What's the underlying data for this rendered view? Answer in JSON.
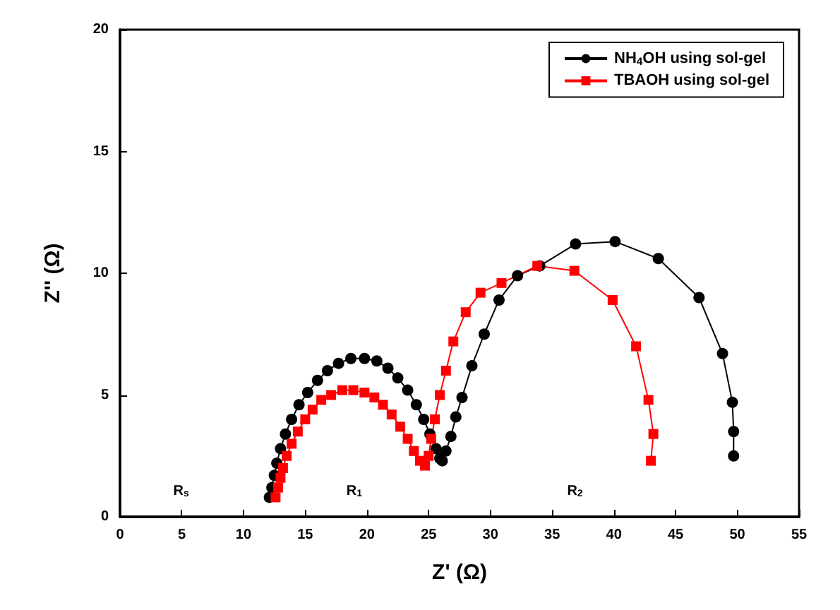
{
  "chart_data": {
    "type": "line",
    "xlabel": "Z' (Ω)",
    "ylabel": "Z'' (Ω)",
    "xlim": [
      0,
      55
    ],
    "xticks": [
      0,
      5,
      10,
      15,
      20,
      25,
      30,
      35,
      40,
      45,
      50,
      55
    ],
    "ylim": [
      0,
      20
    ],
    "yticks": [
      0,
      5,
      10,
      15,
      20
    ],
    "grid": false,
    "legend": "top right",
    "series": [
      {
        "name": "NH$_{4}$OH using sol-gel",
        "color": "#000000",
        "marker": "circle",
        "x": [
          12.1,
          12.3,
          12.5,
          12.7,
          13.0,
          13.4,
          13.9,
          14.5,
          15.2,
          16.0,
          16.8,
          17.7,
          18.7,
          19.8,
          20.8,
          21.7,
          22.5,
          23.3,
          24.0,
          24.6,
          25.1,
          25.6,
          25.9,
          26.1,
          26.4,
          26.8,
          27.2,
          27.7,
          28.5,
          29.5,
          30.7,
          32.2,
          34.0,
          36.9,
          40.1,
          43.6,
          46.9,
          48.8,
          49.6,
          49.7,
          49.7
        ],
        "values": [
          0.8,
          1.2,
          1.7,
          2.2,
          2.8,
          3.4,
          4.0,
          4.6,
          5.1,
          5.6,
          6.0,
          6.3,
          6.5,
          6.5,
          6.4,
          6.1,
          5.7,
          5.2,
          4.6,
          4.0,
          3.4,
          2.8,
          2.4,
          2.3,
          2.7,
          3.3,
          4.1,
          4.9,
          6.2,
          7.5,
          8.9,
          9.9,
          10.3,
          11.2,
          11.3,
          10.6,
          9.0,
          6.7,
          4.7,
          3.5,
          2.5
        ]
      },
      {
        "name": "TBAOH using sol-gel",
        "color": "#ff0000",
        "marker": "square",
        "x": [
          12.6,
          12.8,
          13.0,
          13.2,
          13.5,
          13.9,
          14.4,
          15.0,
          15.6,
          16.3,
          17.1,
          18.0,
          18.9,
          19.8,
          20.6,
          21.3,
          22.0,
          22.7,
          23.3,
          23.8,
          24.3,
          24.7,
          25.0,
          25.2,
          25.5,
          25.9,
          26.4,
          27.0,
          28.0,
          29.2,
          30.9,
          33.8,
          36.8,
          39.9,
          41.8,
          42.8,
          43.2,
          43.0
        ],
        "values": [
          0.8,
          1.2,
          1.6,
          2.0,
          2.5,
          3.0,
          3.5,
          4.0,
          4.4,
          4.8,
          5.0,
          5.2,
          5.2,
          5.1,
          4.9,
          4.6,
          4.2,
          3.7,
          3.2,
          2.7,
          2.3,
          2.1,
          2.5,
          3.2,
          4.0,
          5.0,
          6.0,
          7.2,
          8.4,
          9.2,
          9.6,
          10.3,
          10.1,
          8.9,
          7.0,
          4.8,
          3.4,
          2.3
        ]
      }
    ],
    "annotations": [
      "R$_{s}$",
      "R$_{1}$",
      "R$_{2}$"
    ]
  }
}
